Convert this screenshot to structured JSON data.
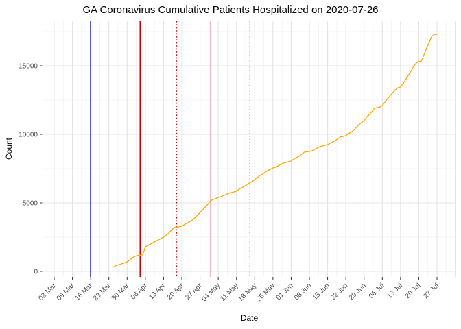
{
  "page": {
    "background": "#FFFFFF"
  },
  "chart_data": {
    "type": "line",
    "title": "GA Coronavirus Cumulative Patients Hospitalized on 2020-07-26",
    "xlabel": "Date",
    "ylabel": "Count",
    "x_tick_labels": [
      "02 Mar",
      "09 Mar",
      "16 Mar",
      "23 Mar",
      "30 Mar",
      "06 Apr",
      "13 Apr",
      "20 Apr",
      "27 Apr",
      "04 May",
      "11 May",
      "18 May",
      "25 May",
      "01 Jun",
      "08 Jun",
      "15 Jun",
      "22 Jun",
      "29 Jun",
      "06 Jul",
      "13 Jul",
      "20 Jul",
      "27 Jul"
    ],
    "x_tick_start_date": "2020-03-02",
    "x_tick_interval_days": 7,
    "y_ticks": [
      0,
      5000,
      10000,
      15000
    ],
    "y_minor_ticks": [
      2500,
      7500,
      12500,
      17500
    ],
    "ylim": [
      0,
      18200
    ],
    "grid": {
      "on": true,
      "major_color": "#E4E4E4",
      "minor_color": "#F2F2F2"
    },
    "legend": "none",
    "text_colors": {
      "tick_label": "#4D4D4D",
      "axis_title": "#000000",
      "title": "#000000",
      "tick_mark": "#333333"
    },
    "reference_lines": [
      {
        "name": "blue-solid-line",
        "date": "2020-03-16",
        "color": "#0000CC",
        "style": "solid"
      },
      {
        "name": "red-solid-line",
        "date": "2020-04-04",
        "color": "#D40000",
        "style": "solid"
      },
      {
        "name": "red-dotted-line",
        "date": "2020-04-18",
        "color": "#D40000",
        "style": "dotted"
      },
      {
        "name": "pink-solid-line",
        "date": "2020-05-01",
        "color": "#F8B8C0",
        "style": "solid"
      },
      {
        "name": "pink-dotted-line",
        "date": "2020-05-16",
        "color": "#F8B8C0",
        "style": "dotted"
      }
    ],
    "series": [
      {
        "name": "Cumulative Patients Hospitalized",
        "color": "#FFA500",
        "points": [
          [
            "2020-03-25",
            350
          ],
          [
            "2020-03-26",
            450
          ],
          [
            "2020-03-27",
            500
          ],
          [
            "2020-03-28",
            560
          ],
          [
            "2020-03-29",
            620
          ],
          [
            "2020-03-30",
            700
          ],
          [
            "2020-03-31",
            830
          ],
          [
            "2020-04-01",
            1000
          ],
          [
            "2020-04-02",
            1100
          ],
          [
            "2020-04-03",
            1160
          ],
          [
            "2020-04-04",
            1190
          ],
          [
            "2020-04-05",
            1220
          ],
          [
            "2020-04-06",
            1800
          ],
          [
            "2020-04-07",
            1900
          ],
          [
            "2020-04-08",
            2000
          ],
          [
            "2020-04-09",
            2100
          ],
          [
            "2020-04-10",
            2200
          ],
          [
            "2020-04-11",
            2300
          ],
          [
            "2020-04-12",
            2400
          ],
          [
            "2020-04-13",
            2500
          ],
          [
            "2020-04-14",
            2650
          ],
          [
            "2020-04-15",
            2800
          ],
          [
            "2020-04-16",
            3000
          ],
          [
            "2020-04-17",
            3200
          ],
          [
            "2020-04-18",
            3220
          ],
          [
            "2020-04-19",
            3250
          ],
          [
            "2020-04-20",
            3300
          ],
          [
            "2020-04-21",
            3420
          ],
          [
            "2020-04-22",
            3520
          ],
          [
            "2020-04-23",
            3620
          ],
          [
            "2020-04-24",
            3750
          ],
          [
            "2020-04-25",
            3900
          ],
          [
            "2020-04-26",
            4100
          ],
          [
            "2020-04-27",
            4300
          ],
          [
            "2020-04-28",
            4500
          ],
          [
            "2020-04-29",
            4700
          ],
          [
            "2020-04-30",
            4900
          ],
          [
            "2020-05-01",
            5150
          ],
          [
            "2020-05-02",
            5250
          ],
          [
            "2020-05-03",
            5300
          ],
          [
            "2020-05-04",
            5400
          ],
          [
            "2020-05-05",
            5450
          ],
          [
            "2020-05-06",
            5550
          ],
          [
            "2020-05-07",
            5600
          ],
          [
            "2020-05-08",
            5700
          ],
          [
            "2020-05-09",
            5750
          ],
          [
            "2020-05-10",
            5800
          ],
          [
            "2020-05-11",
            5850
          ],
          [
            "2020-05-12",
            6000
          ],
          [
            "2020-05-13",
            6100
          ],
          [
            "2020-05-14",
            6200
          ],
          [
            "2020-05-15",
            6350
          ],
          [
            "2020-05-16",
            6450
          ],
          [
            "2020-05-17",
            6550
          ],
          [
            "2020-05-18",
            6700
          ],
          [
            "2020-05-19",
            6850
          ],
          [
            "2020-05-20",
            7000
          ],
          [
            "2020-05-21",
            7100
          ],
          [
            "2020-05-22",
            7250
          ],
          [
            "2020-05-23",
            7350
          ],
          [
            "2020-05-24",
            7450
          ],
          [
            "2020-05-25",
            7550
          ],
          [
            "2020-05-26",
            7600
          ],
          [
            "2020-05-27",
            7700
          ],
          [
            "2020-05-28",
            7800
          ],
          [
            "2020-05-29",
            7900
          ],
          [
            "2020-05-30",
            7950
          ],
          [
            "2020-05-31",
            8000
          ],
          [
            "2020-06-01",
            8050
          ],
          [
            "2020-06-02",
            8200
          ],
          [
            "2020-06-03",
            8300
          ],
          [
            "2020-06-04",
            8400
          ],
          [
            "2020-06-05",
            8550
          ],
          [
            "2020-06-06",
            8700
          ],
          [
            "2020-06-07",
            8730
          ],
          [
            "2020-06-08",
            8750
          ],
          [
            "2020-06-09",
            8800
          ],
          [
            "2020-06-10",
            8900
          ],
          [
            "2020-06-11",
            9000
          ],
          [
            "2020-06-12",
            9100
          ],
          [
            "2020-06-13",
            9150
          ],
          [
            "2020-06-14",
            9200
          ],
          [
            "2020-06-15",
            9250
          ],
          [
            "2020-06-16",
            9350
          ],
          [
            "2020-06-17",
            9450
          ],
          [
            "2020-06-18",
            9550
          ],
          [
            "2020-06-19",
            9700
          ],
          [
            "2020-06-20",
            9820
          ],
          [
            "2020-06-21",
            9850
          ],
          [
            "2020-06-22",
            9900
          ],
          [
            "2020-06-23",
            10050
          ],
          [
            "2020-06-24",
            10150
          ],
          [
            "2020-06-25",
            10300
          ],
          [
            "2020-06-26",
            10500
          ],
          [
            "2020-06-27",
            10700
          ],
          [
            "2020-06-28",
            10850
          ],
          [
            "2020-06-29",
            11000
          ],
          [
            "2020-06-30",
            11250
          ],
          [
            "2020-07-01",
            11450
          ],
          [
            "2020-07-02",
            11650
          ],
          [
            "2020-07-03",
            11900
          ],
          [
            "2020-07-04",
            11950
          ],
          [
            "2020-07-05",
            11980
          ],
          [
            "2020-07-06",
            12100
          ],
          [
            "2020-07-07",
            12350
          ],
          [
            "2020-07-08",
            12600
          ],
          [
            "2020-07-09",
            12800
          ],
          [
            "2020-07-10",
            13050
          ],
          [
            "2020-07-11",
            13250
          ],
          [
            "2020-07-12",
            13400
          ],
          [
            "2020-07-13",
            13450
          ],
          [
            "2020-07-14",
            13700
          ],
          [
            "2020-07-15",
            14000
          ],
          [
            "2020-07-16",
            14300
          ],
          [
            "2020-07-17",
            14600
          ],
          [
            "2020-07-18",
            14950
          ],
          [
            "2020-07-19",
            15200
          ],
          [
            "2020-07-20",
            15300
          ],
          [
            "2020-07-21",
            15350
          ],
          [
            "2020-07-22",
            15800
          ],
          [
            "2020-07-23",
            16300
          ],
          [
            "2020-07-24",
            16700
          ],
          [
            "2020-07-25",
            17150
          ],
          [
            "2020-07-26",
            17280
          ],
          [
            "2020-07-27",
            17300
          ]
        ]
      }
    ]
  }
}
